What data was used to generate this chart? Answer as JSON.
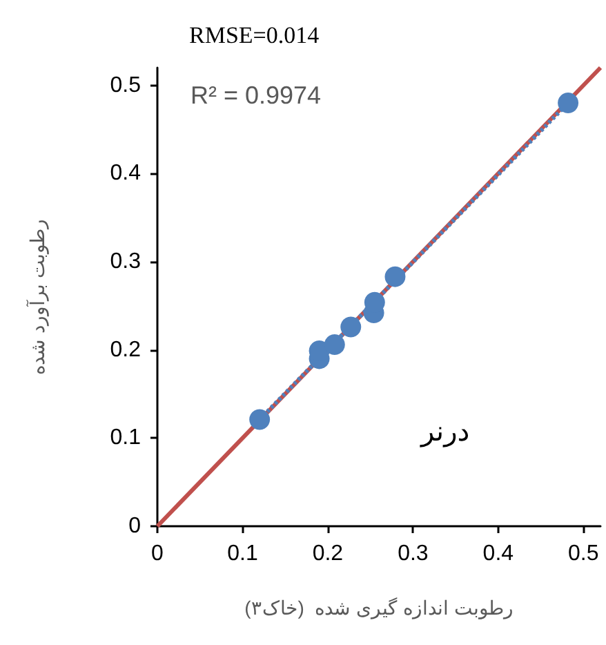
{
  "chart_data": {
    "type": "scatter",
    "title": "RMSE=0.014",
    "xlabel": "رطوبت اندازه گیری شده  (خاک۳)",
    "ylabel": "رطوبت برآورد شده",
    "annotations": [
      "R² = 0.9974",
      "درنر"
    ],
    "series": [
      {
        "type": "line",
        "color": "#c0504d",
        "x": [
          0,
          0.52
        ],
        "values": [
          0,
          0.52
        ],
        "line_style": "solid",
        "marker": "none"
      },
      {
        "type": "line",
        "color": "#4f81bd",
        "x": [
          0.12,
          0.482
        ],
        "values": [
          0.121,
          0.48
        ],
        "line_style": "dotted",
        "marker": "none"
      },
      {
        "type": "scatter",
        "color": "#4f81bd",
        "marker": "circle",
        "x": [
          0.12,
          0.19,
          0.19,
          0.208,
          0.227,
          0.254,
          0.255,
          0.279,
          0.482
        ],
        "values": [
          0.121,
          0.19,
          0.199,
          0.206,
          0.226,
          0.242,
          0.254,
          0.283,
          0.48
        ]
      }
    ],
    "xlim": [
      0,
      0.52
    ],
    "xticks": [
      0,
      0.1,
      0.2,
      0.3,
      0.4,
      0.5
    ],
    "ylim": [
      0,
      0.52
    ],
    "yticks": [
      0,
      0.1,
      0.2,
      0.3,
      0.4,
      0.5
    ],
    "grid": false
  }
}
